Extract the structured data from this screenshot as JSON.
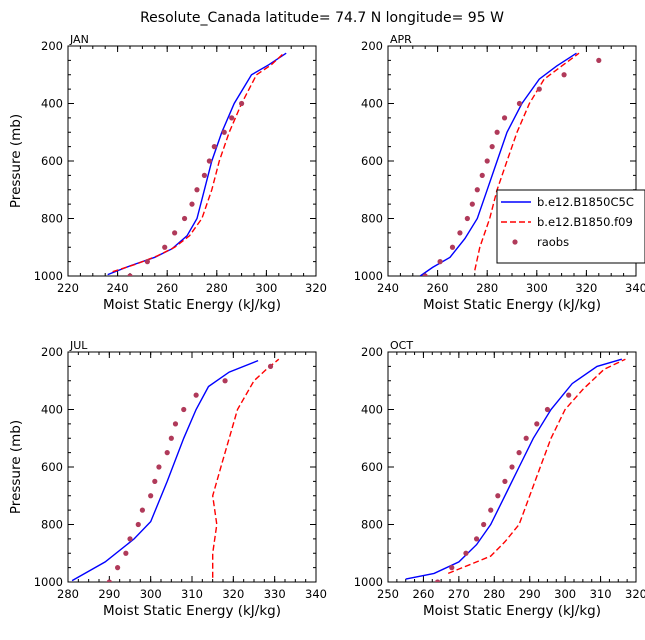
{
  "figure": {
    "title": "Resolute_Canada   latitude= 74.7 N longitude= 95 W"
  },
  "series_styles": {
    "model_a_color": "#0000ff",
    "model_b_color": "#ff0000",
    "obs_color": "#b03a5a"
  },
  "chart_data": [
    {
      "type": "line",
      "panel": "JAN",
      "xlabel": "Moist Static Energy (kJ/kg)",
      "ylabel": "Pressure (mb)",
      "xlim": [
        220,
        320
      ],
      "ylim": [
        1000,
        200
      ],
      "y_reversed": true,
      "xticks": [
        220,
        240,
        260,
        280,
        300,
        320
      ],
      "yticks": [
        200,
        400,
        600,
        800,
        1000
      ],
      "series": [
        {
          "id": "a",
          "style": "solid",
          "points": [
            [
              236,
              995
            ],
            [
              245,
              965
            ],
            [
              255,
              935
            ],
            [
              262,
              905
            ],
            [
              268,
              860
            ],
            [
              272,
              800
            ],
            [
              275,
              700
            ],
            [
              278,
              600
            ],
            [
              282,
              500
            ],
            [
              287,
              400
            ],
            [
              294,
              300
            ],
            [
              301,
              265
            ],
            [
              308,
              225
            ]
          ]
        },
        {
          "id": "b",
          "style": "dashed",
          "points": [
            [
              238,
              985
            ],
            [
              247,
              960
            ],
            [
              256,
              930
            ],
            [
              263,
              900
            ],
            [
              269,
              860
            ],
            [
              274,
              800
            ],
            [
              278,
              700
            ],
            [
              281,
              600
            ],
            [
              285,
              500
            ],
            [
              290,
              400
            ],
            [
              296,
              300
            ],
            [
              302,
              265
            ],
            [
              307,
              225
            ]
          ]
        },
        {
          "id": "obs",
          "style": "dots",
          "points": [
            [
              245,
              1000
            ],
            [
              252,
              950
            ],
            [
              259,
              900
            ],
            [
              263,
              850
            ],
            [
              267,
              800
            ],
            [
              270,
              750
            ],
            [
              272,
              700
            ],
            [
              275,
              650
            ],
            [
              277,
              600
            ],
            [
              279,
              550
            ],
            [
              283,
              500
            ],
            [
              286,
              450
            ],
            [
              290,
              400
            ]
          ]
        }
      ]
    },
    {
      "type": "line",
      "panel": "APR",
      "xlabel": "Moist Static Energy (kJ/kg)",
      "ylabel": "",
      "xlim": [
        240,
        340
      ],
      "ylim": [
        1000,
        200
      ],
      "y_reversed": true,
      "xticks": [
        240,
        260,
        280,
        300,
        320,
        340
      ],
      "yticks": [
        200,
        400,
        600,
        800,
        1000
      ],
      "legend": {
        "placement": "right",
        "entries": [
          {
            "series": "a",
            "label": "b.e12.B1850C5C"
          },
          {
            "series": "b",
            "label": "b.e12.B1850.f09"
          },
          {
            "series": "obs",
            "label": "raobs"
          }
        ]
      },
      "series": [
        {
          "id": "a",
          "style": "solid",
          "points": [
            [
              253,
              1000
            ],
            [
              258,
              970
            ],
            [
              265,
              935
            ],
            [
              271,
              870
            ],
            [
              276,
              800
            ],
            [
              280,
              700
            ],
            [
              284,
              600
            ],
            [
              288,
              500
            ],
            [
              294,
              400
            ],
            [
              301,
              315
            ],
            [
              308,
              270
            ],
            [
              316,
              225
            ]
          ]
        },
        {
          "id": "b",
          "style": "dashed",
          "points": [
            [
              275,
              980
            ],
            [
              277,
              900
            ],
            [
              281,
              800
            ],
            [
              284,
              700
            ],
            [
              288,
              600
            ],
            [
              292,
              500
            ],
            [
              297,
              400
            ],
            [
              303,
              315
            ],
            [
              310,
              270
            ],
            [
              317,
              225
            ]
          ]
        },
        {
          "id": "obs",
          "style": "dots",
          "points": [
            [
              255,
              1000
            ],
            [
              261,
              950
            ],
            [
              266,
              900
            ],
            [
              269,
              850
            ],
            [
              272,
              800
            ],
            [
              274,
              750
            ],
            [
              276,
              700
            ],
            [
              278,
              650
            ],
            [
              280,
              600
            ],
            [
              282,
              550
            ],
            [
              284,
              500
            ],
            [
              287,
              450
            ],
            [
              293,
              400
            ],
            [
              301,
              350
            ],
            [
              311,
              300
            ],
            [
              325,
              250
            ]
          ]
        }
      ]
    },
    {
      "type": "line",
      "panel": "JUL",
      "xlabel": "Moist Static Energy (kJ/kg)",
      "ylabel": "Pressure (mb)",
      "xlim": [
        280,
        340
      ],
      "ylim": [
        1000,
        200
      ],
      "y_reversed": true,
      "xticks": [
        280,
        290,
        300,
        310,
        320,
        330,
        340
      ],
      "yticks": [
        200,
        400,
        600,
        800,
        1000
      ],
      "series": [
        {
          "id": "a",
          "style": "solid",
          "points": [
            [
              281,
              995
            ],
            [
              289,
              930
            ],
            [
              296,
              850
            ],
            [
              300,
              790
            ],
            [
              304,
              650
            ],
            [
              308,
              500
            ],
            [
              311,
              400
            ],
            [
              314,
              320
            ],
            [
              319,
              270
            ],
            [
              326,
              230
            ]
          ]
        },
        {
          "id": "b",
          "style": "dashed",
          "points": [
            [
              315,
              985
            ],
            [
              315,
              900
            ],
            [
              316,
              800
            ],
            [
              315,
              700
            ],
            [
              317,
              600
            ],
            [
              319,
              500
            ],
            [
              321,
              400
            ],
            [
              325,
              300
            ],
            [
              328,
              260
            ],
            [
              331,
              225
            ]
          ]
        },
        {
          "id": "obs",
          "style": "dots",
          "points": [
            [
              290,
              1000
            ],
            [
              292,
              950
            ],
            [
              294,
              900
            ],
            [
              295,
              850
            ],
            [
              297,
              800
            ],
            [
              298,
              750
            ],
            [
              300,
              700
            ],
            [
              301,
              650
            ],
            [
              302,
              600
            ],
            [
              304,
              550
            ],
            [
              305,
              500
            ],
            [
              306,
              450
            ],
            [
              308,
              400
            ],
            [
              311,
              350
            ],
            [
              318,
              300
            ],
            [
              329,
              250
            ]
          ]
        }
      ]
    },
    {
      "type": "line",
      "panel": "OCT",
      "xlabel": "Moist Static Energy (kJ/kg)",
      "ylabel": "",
      "xlim": [
        250,
        320
      ],
      "ylim": [
        1000,
        200
      ],
      "y_reversed": true,
      "xticks": [
        250,
        260,
        270,
        280,
        290,
        300,
        310,
        320
      ],
      "yticks": [
        200,
        400,
        600,
        800,
        1000
      ],
      "series": [
        {
          "id": "a",
          "style": "solid",
          "points": [
            [
              255,
              990
            ],
            [
              263,
              970
            ],
            [
              270,
              930
            ],
            [
              275,
              870
            ],
            [
              279,
              800
            ],
            [
              283,
              700
            ],
            [
              287,
              600
            ],
            [
              291,
              500
            ],
            [
              296,
              400
            ],
            [
              302,
              310
            ],
            [
              309,
              250
            ],
            [
              316,
              225
            ]
          ]
        },
        {
          "id": "b",
          "style": "dashed",
          "points": [
            [
              267,
              970
            ],
            [
              273,
              940
            ],
            [
              279,
              910
            ],
            [
              283,
              860
            ],
            [
              287,
              800
            ],
            [
              290,
              700
            ],
            [
              293,
              600
            ],
            [
              296,
              500
            ],
            [
              300,
              400
            ],
            [
              305,
              330
            ],
            [
              311,
              260
            ],
            [
              317,
              225
            ]
          ]
        },
        {
          "id": "obs",
          "style": "dots",
          "points": [
            [
              264,
              1000
            ],
            [
              268,
              950
            ],
            [
              272,
              900
            ],
            [
              275,
              850
            ],
            [
              277,
              800
            ],
            [
              279,
              750
            ],
            [
              281,
              700
            ],
            [
              283,
              650
            ],
            [
              285,
              600
            ],
            [
              287,
              550
            ],
            [
              289,
              500
            ],
            [
              292,
              450
            ],
            [
              295,
              400
            ],
            [
              301,
              350
            ]
          ]
        }
      ]
    }
  ]
}
